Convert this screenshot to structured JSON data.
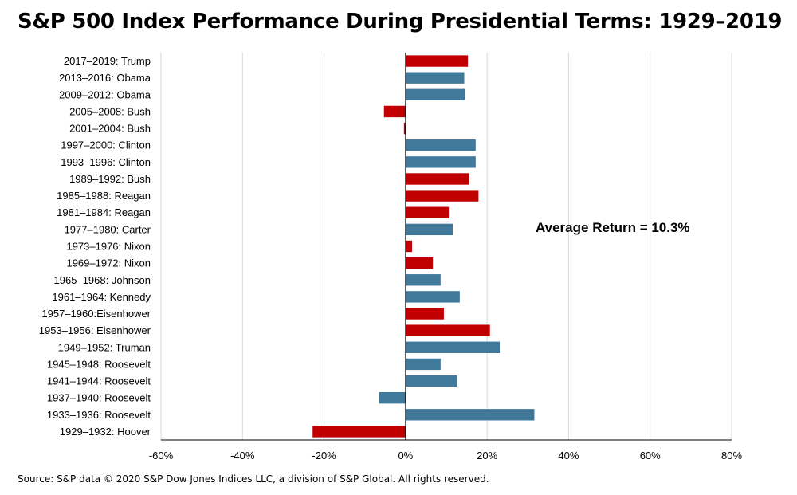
{
  "chart_data": {
    "type": "bar",
    "orientation": "horizontal",
    "title": "S&P 500 Index Performance During Presidential Terms: 1929–2019",
    "categories": [
      "2017–2019: Trump",
      "2013–2016: Obama",
      "2009–2012: Obama",
      "2005–2008: Bush",
      "2001–2004: Bush",
      "1997–2000: Clinton",
      "1993–1996: Clinton",
      "1989–1992: Bush",
      "1985–1988: Reagan",
      "1981–1984: Reagan",
      "1977–1980: Carter",
      "1973–1976: Nixon",
      "1969–1972: Nixon",
      "1965–1968: Johnson",
      "1961–1964: Kennedy",
      "1957–1960:Eisenhower",
      "1953–1956: Eisenhower",
      "1949–1952: Truman",
      "1945–1948: Roosevelt",
      "1941–1944: Roosevelt",
      "1937–1940: Roosevelt",
      "1933–1936: Roosevelt",
      "1929–1932: Hoover"
    ],
    "values": [
      15.3,
      14.4,
      14.5,
      -5.3,
      -0.4,
      17.2,
      17.2,
      15.6,
      17.9,
      10.6,
      11.6,
      1.6,
      6.7,
      8.6,
      13.3,
      9.4,
      20.7,
      23.1,
      8.6,
      12.6,
      -6.5,
      31.6,
      -22.8
    ],
    "bar_colors": [
      "#c00000",
      "#41799b",
      "#41799b",
      "#c00000",
      "#c00000",
      "#41799b",
      "#41799b",
      "#c00000",
      "#c00000",
      "#c00000",
      "#41799b",
      "#c00000",
      "#c00000",
      "#41799b",
      "#41799b",
      "#c00000",
      "#c00000",
      "#41799b",
      "#41799b",
      "#41799b",
      "#41799b",
      "#41799b",
      "#c00000"
    ],
    "xlim": [
      -60,
      80
    ],
    "xticks": [
      -60,
      -40,
      -20,
      0,
      20,
      40,
      60,
      80
    ],
    "xtick_labels": [
      "-60%",
      "-40%",
      "-20%",
      "0%",
      "20%",
      "40%",
      "60%",
      "80%"
    ],
    "grid": "vertical",
    "annotation": "Average Return = 10.3%"
  },
  "source": "Source: S&P data © 2020 S&P Dow Jones Indices LLC, a division of S&P Global. All rights reserved."
}
